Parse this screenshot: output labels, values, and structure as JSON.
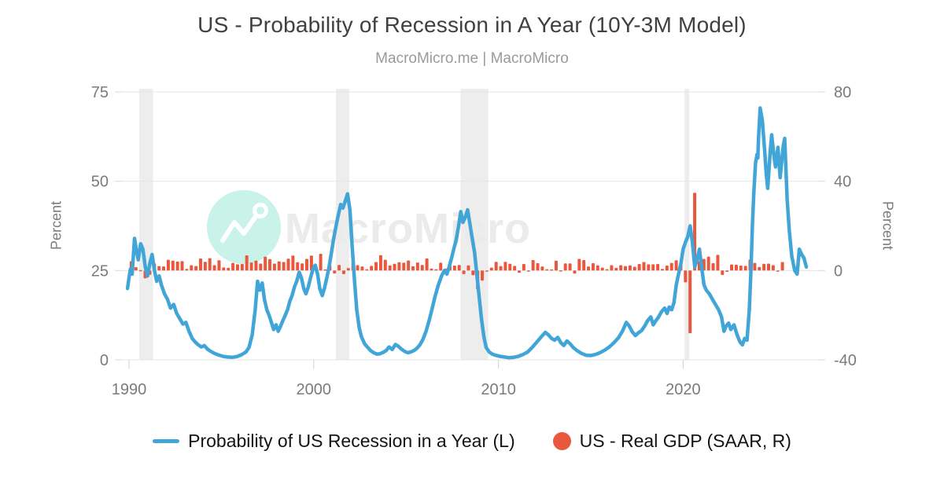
{
  "header": {
    "title": "US - Probability of Recession in A Year (10Y-3M Model)",
    "subtitle": "MacroMicro.me | MacroMicro"
  },
  "watermark": {
    "text": "MacroMicro",
    "circle_color": "#C9F2E8",
    "logo_color": "#FFFFFF",
    "text_color": "#EBEBEB"
  },
  "axes": {
    "left": {
      "title": "Percent",
      "ticks": [
        0,
        25,
        50,
        75
      ]
    },
    "right": {
      "title": "Percent",
      "ticks": [
        -40,
        0,
        40,
        80
      ]
    },
    "x": {
      "ticks": [
        1990,
        2000,
        2010,
        2020
      ]
    }
  },
  "legend": [
    {
      "label": "Probability of US Recession in a Year (L)",
      "swatch": "line",
      "color": "#42A5D7"
    },
    {
      "label": "US - Real GDP (SAAR, R)",
      "swatch": "dot",
      "color": "#E9573D"
    }
  ],
  "chart_data": {
    "type": "line+bar",
    "title": "US - Probability of Recession in A Year (10Y-3M Model)",
    "x_range": [
      1989.6,
      2027.3
    ],
    "left_axis": {
      "label": "Percent",
      "range": [
        0,
        75.8
      ],
      "gridlines": true
    },
    "right_axis": {
      "label": "Percent",
      "range": [
        -40.3,
        80
      ],
      "gridlines": false
    },
    "legend_position": "bottom",
    "band_color": "#EDEDED",
    "recession_bands": [
      [
        1990.55,
        1991.3
      ],
      [
        2001.2,
        2001.92
      ],
      [
        2007.95,
        2009.45
      ],
      [
        2020.08,
        2020.33
      ]
    ],
    "series": [
      {
        "name": "Probability of US Recession in a Year (L)",
        "type": "line",
        "axis": "left",
        "color": "#42A5D7",
        "points": [
          [
            1989.92,
            20
          ],
          [
            1990.0,
            23
          ],
          [
            1990.08,
            25.5
          ],
          [
            1990.17,
            24
          ],
          [
            1990.3,
            34
          ],
          [
            1990.42,
            30
          ],
          [
            1990.5,
            28
          ],
          [
            1990.63,
            32.5
          ],
          [
            1990.75,
            31
          ],
          [
            1990.88,
            26
          ],
          [
            1991.0,
            23.5
          ],
          [
            1991.13,
            27
          ],
          [
            1991.25,
            29.5
          ],
          [
            1991.38,
            25
          ],
          [
            1991.5,
            22
          ],
          [
            1991.63,
            23.5
          ],
          [
            1991.75,
            21
          ],
          [
            1991.92,
            18.5
          ],
          [
            1992.08,
            17
          ],
          [
            1992.25,
            14.5
          ],
          [
            1992.42,
            15.5
          ],
          [
            1992.58,
            13
          ],
          [
            1992.75,
            11.5
          ],
          [
            1992.92,
            10
          ],
          [
            1993.08,
            10.5
          ],
          [
            1993.25,
            8
          ],
          [
            1993.42,
            6
          ],
          [
            1993.58,
            5
          ],
          [
            1993.75,
            4.2
          ],
          [
            1993.92,
            3.6
          ],
          [
            1994.08,
            4
          ],
          [
            1994.25,
            3
          ],
          [
            1994.42,
            2.4
          ],
          [
            1994.63,
            1.8
          ],
          [
            1994.83,
            1.4
          ],
          [
            1995.08,
            1
          ],
          [
            1995.33,
            0.8
          ],
          [
            1995.58,
            0.7
          ],
          [
            1995.83,
            0.9
          ],
          [
            1996.08,
            1.4
          ],
          [
            1996.33,
            2.2
          ],
          [
            1996.5,
            3.5
          ],
          [
            1996.67,
            7
          ],
          [
            1996.83,
            14
          ],
          [
            1996.96,
            22
          ],
          [
            1997.08,
            19.5
          ],
          [
            1997.21,
            21.5
          ],
          [
            1997.33,
            17
          ],
          [
            1997.46,
            14
          ],
          [
            1997.58,
            12.5
          ],
          [
            1997.71,
            10.5
          ],
          [
            1997.83,
            8.5
          ],
          [
            1997.96,
            9.8
          ],
          [
            1998.08,
            8
          ],
          [
            1998.21,
            9.5
          ],
          [
            1998.33,
            11
          ],
          [
            1998.46,
            12.5
          ],
          [
            1998.58,
            14
          ],
          [
            1998.71,
            16.5
          ],
          [
            1998.83,
            18
          ],
          [
            1998.96,
            20.5
          ],
          [
            1999.08,
            22
          ],
          [
            1999.21,
            24.5
          ],
          [
            1999.33,
            23
          ],
          [
            1999.46,
            20
          ],
          [
            1999.58,
            18.5
          ],
          [
            1999.71,
            20.5
          ],
          [
            1999.83,
            23
          ],
          [
            1999.96,
            25.5
          ],
          [
            2000.08,
            26.5
          ],
          [
            2000.21,
            24
          ],
          [
            2000.33,
            20
          ],
          [
            2000.46,
            18
          ],
          [
            2000.58,
            20
          ],
          [
            2000.71,
            23
          ],
          [
            2000.83,
            26
          ],
          [
            2000.96,
            30
          ],
          [
            2001.08,
            34
          ],
          [
            2001.21,
            37.5
          ],
          [
            2001.33,
            40.5
          ],
          [
            2001.46,
            43.5
          ],
          [
            2001.58,
            42.5
          ],
          [
            2001.71,
            44.5
          ],
          [
            2001.83,
            46.5
          ],
          [
            2001.96,
            42
          ],
          [
            2002.08,
            32
          ],
          [
            2002.21,
            22
          ],
          [
            2002.33,
            14
          ],
          [
            2002.46,
            9
          ],
          [
            2002.58,
            6.5
          ],
          [
            2002.75,
            4.5
          ],
          [
            2002.92,
            3.5
          ],
          [
            2003.08,
            2.6
          ],
          [
            2003.25,
            2
          ],
          [
            2003.42,
            1.6
          ],
          [
            2003.58,
            1.7
          ],
          [
            2003.75,
            2.1
          ],
          [
            2003.92,
            2.6
          ],
          [
            2004.08,
            3.6
          ],
          [
            2004.25,
            2.9
          ],
          [
            2004.42,
            4.3
          ],
          [
            2004.58,
            3.8
          ],
          [
            2004.75,
            3
          ],
          [
            2004.92,
            2.4
          ],
          [
            2005.08,
            2
          ],
          [
            2005.25,
            2.2
          ],
          [
            2005.42,
            2.6
          ],
          [
            2005.58,
            3.2
          ],
          [
            2005.75,
            4.2
          ],
          [
            2005.92,
            5.8
          ],
          [
            2006.08,
            8
          ],
          [
            2006.25,
            11
          ],
          [
            2006.42,
            14.5
          ],
          [
            2006.58,
            18
          ],
          [
            2006.75,
            21
          ],
          [
            2006.92,
            23.5
          ],
          [
            2007.08,
            25
          ],
          [
            2007.21,
            24
          ],
          [
            2007.33,
            26
          ],
          [
            2007.46,
            28.5
          ],
          [
            2007.58,
            31
          ],
          [
            2007.71,
            33.5
          ],
          [
            2007.83,
            37
          ],
          [
            2007.96,
            41.5
          ],
          [
            2008.08,
            38.5
          ],
          [
            2008.21,
            40
          ],
          [
            2008.33,
            42
          ],
          [
            2008.46,
            38
          ],
          [
            2008.58,
            34
          ],
          [
            2008.71,
            30
          ],
          [
            2008.83,
            24
          ],
          [
            2008.96,
            17.5
          ],
          [
            2009.08,
            11.5
          ],
          [
            2009.21,
            6.5
          ],
          [
            2009.33,
            3.5
          ],
          [
            2009.5,
            2.2
          ],
          [
            2009.67,
            1.6
          ],
          [
            2009.83,
            1.3
          ],
          [
            2010.08,
            1
          ],
          [
            2010.33,
            0.8
          ],
          [
            2010.58,
            0.6
          ],
          [
            2010.83,
            0.7
          ],
          [
            2011.08,
            1
          ],
          [
            2011.33,
            1.5
          ],
          [
            2011.58,
            2.2
          ],
          [
            2011.83,
            3.5
          ],
          [
            2012.08,
            5
          ],
          [
            2012.33,
            6.5
          ],
          [
            2012.54,
            7.7
          ],
          [
            2012.71,
            7
          ],
          [
            2012.88,
            6
          ],
          [
            2013.04,
            5.5
          ],
          [
            2013.21,
            6.3
          ],
          [
            2013.38,
            4.8
          ],
          [
            2013.54,
            4
          ],
          [
            2013.71,
            5.3
          ],
          [
            2013.88,
            4.5
          ],
          [
            2014.04,
            3.5
          ],
          [
            2014.25,
            2.6
          ],
          [
            2014.5,
            1.8
          ],
          [
            2014.75,
            1.3
          ],
          [
            2015.0,
            1.2
          ],
          [
            2015.25,
            1.5
          ],
          [
            2015.5,
            2
          ],
          [
            2015.75,
            2.7
          ],
          [
            2016.0,
            3.6
          ],
          [
            2016.25,
            4.8
          ],
          [
            2016.5,
            6.2
          ],
          [
            2016.71,
            8
          ],
          [
            2016.92,
            10.5
          ],
          [
            2017.08,
            9.5
          ],
          [
            2017.25,
            7.8
          ],
          [
            2017.42,
            6.8
          ],
          [
            2017.58,
            7.6
          ],
          [
            2017.75,
            8.2
          ],
          [
            2017.92,
            9.5
          ],
          [
            2018.08,
            11
          ],
          [
            2018.25,
            12
          ],
          [
            2018.38,
            9.8
          ],
          [
            2018.5,
            10.8
          ],
          [
            2018.67,
            12
          ],
          [
            2018.83,
            13.5
          ],
          [
            2019.0,
            14.5
          ],
          [
            2019.13,
            13
          ],
          [
            2019.25,
            14.8
          ],
          [
            2019.38,
            14
          ],
          [
            2019.5,
            16
          ],
          [
            2019.63,
            21
          ],
          [
            2019.75,
            24
          ],
          [
            2019.88,
            27
          ],
          [
            2020.0,
            31
          ],
          [
            2020.13,
            33
          ],
          [
            2020.25,
            34.5
          ],
          [
            2020.38,
            37.5
          ],
          [
            2020.5,
            33
          ],
          [
            2020.63,
            26
          ],
          [
            2020.75,
            28
          ],
          [
            2020.88,
            31
          ],
          [
            2021.0,
            26
          ],
          [
            2021.13,
            21
          ],
          [
            2021.25,
            19.5
          ],
          [
            2021.42,
            18.5
          ],
          [
            2021.58,
            17
          ],
          [
            2021.75,
            15.5
          ],
          [
            2021.92,
            14
          ],
          [
            2022.08,
            12
          ],
          [
            2022.21,
            8
          ],
          [
            2022.33,
            9.5
          ],
          [
            2022.46,
            10.3
          ],
          [
            2022.58,
            8.5
          ],
          [
            2022.75,
            9.8
          ],
          [
            2022.92,
            7
          ],
          [
            2023.08,
            5
          ],
          [
            2023.21,
            4.2
          ],
          [
            2023.33,
            6
          ],
          [
            2023.46,
            5.5
          ],
          [
            2023.58,
            14
          ],
          [
            2023.67,
            25
          ],
          [
            2023.75,
            38
          ],
          [
            2023.83,
            47
          ],
          [
            2023.92,
            55
          ],
          [
            2024.0,
            57.5
          ],
          [
            2024.04,
            56.5
          ],
          [
            2024.08,
            62
          ],
          [
            2024.17,
            70.5
          ],
          [
            2024.29,
            67
          ],
          [
            2024.42,
            58
          ],
          [
            2024.5,
            52
          ],
          [
            2024.58,
            48
          ],
          [
            2024.71,
            58
          ],
          [
            2024.79,
            63
          ],
          [
            2024.92,
            57
          ],
          [
            2025.0,
            54
          ],
          [
            2025.13,
            59.5
          ],
          [
            2025.25,
            51
          ],
          [
            2025.42,
            60
          ],
          [
            2025.5,
            62
          ],
          [
            2025.63,
            45
          ],
          [
            2025.75,
            36
          ],
          [
            2025.88,
            29
          ],
          [
            2026.04,
            25
          ],
          [
            2026.17,
            24
          ],
          [
            2026.29,
            31
          ],
          [
            2026.42,
            29.5
          ],
          [
            2026.54,
            28.5
          ],
          [
            2026.67,
            26
          ]
        ]
      },
      {
        "name": "US - Real GDP (SAAR, R)",
        "type": "bar",
        "axis": "right",
        "color": "#E9573D",
        "quarterly_start": 1990,
        "values": [
          4.2,
          1.5,
          0.2,
          -3.5,
          -1.9,
          3.2,
          2.0,
          1.8,
          4.8,
          4.4,
          4.0,
          4.2,
          0.7,
          2.4,
          2.0,
          5.4,
          3.9,
          5.5,
          2.4,
          4.6,
          1.4,
          1.2,
          3.4,
          2.8,
          2.9,
          6.8,
          3.6,
          4.4,
          3.1,
          6.2,
          5.1,
          3.1,
          4.1,
          3.8,
          5.3,
          6.7,
          3.7,
          3.2,
          5.2,
          6.7,
          1.5,
          7.5,
          0.5,
          2.4,
          -1.3,
          2.5,
          -1.6,
          1.1,
          3.5,
          2.4,
          1.8,
          0.6,
          2.1,
          3.8,
          6.9,
          4.8,
          2.3,
          3.0,
          3.7,
          3.5,
          4.5,
          1.9,
          3.6,
          2.5,
          5.4,
          0.9,
          0.6,
          3.5,
          0.9,
          2.3,
          2.2,
          2.5,
          -1.6,
          2.3,
          -2.1,
          -8.5,
          -4.5,
          -0.5,
          1.3,
          3.9,
          2.0,
          3.9,
          3.0,
          2.1,
          -1.0,
          2.9,
          -0.1,
          4.7,
          3.3,
          1.8,
          0.6,
          0.5,
          4.4,
          0.1,
          3.2,
          3.2,
          -1.4,
          5.2,
          4.7,
          1.8,
          3.3,
          2.3,
          1.3,
          0.6,
          2.4,
          1.2,
          2.4,
          2.0,
          2.3,
          1.7,
          2.9,
          3.8,
          2.8,
          2.8,
          2.9,
          0.7,
          2.2,
          3.4,
          4.6,
          2.6,
          -5.3,
          -28.1,
          34.8,
          4.2,
          5.2,
          6.2,
          3.3,
          7.0,
          -2.0,
          -0.6,
          2.7,
          2.6,
          2.2,
          2.1,
          4.9,
          3.4,
          1.6,
          3.0,
          3.1,
          2.4,
          -0.5,
          3.8
        ]
      }
    ]
  }
}
